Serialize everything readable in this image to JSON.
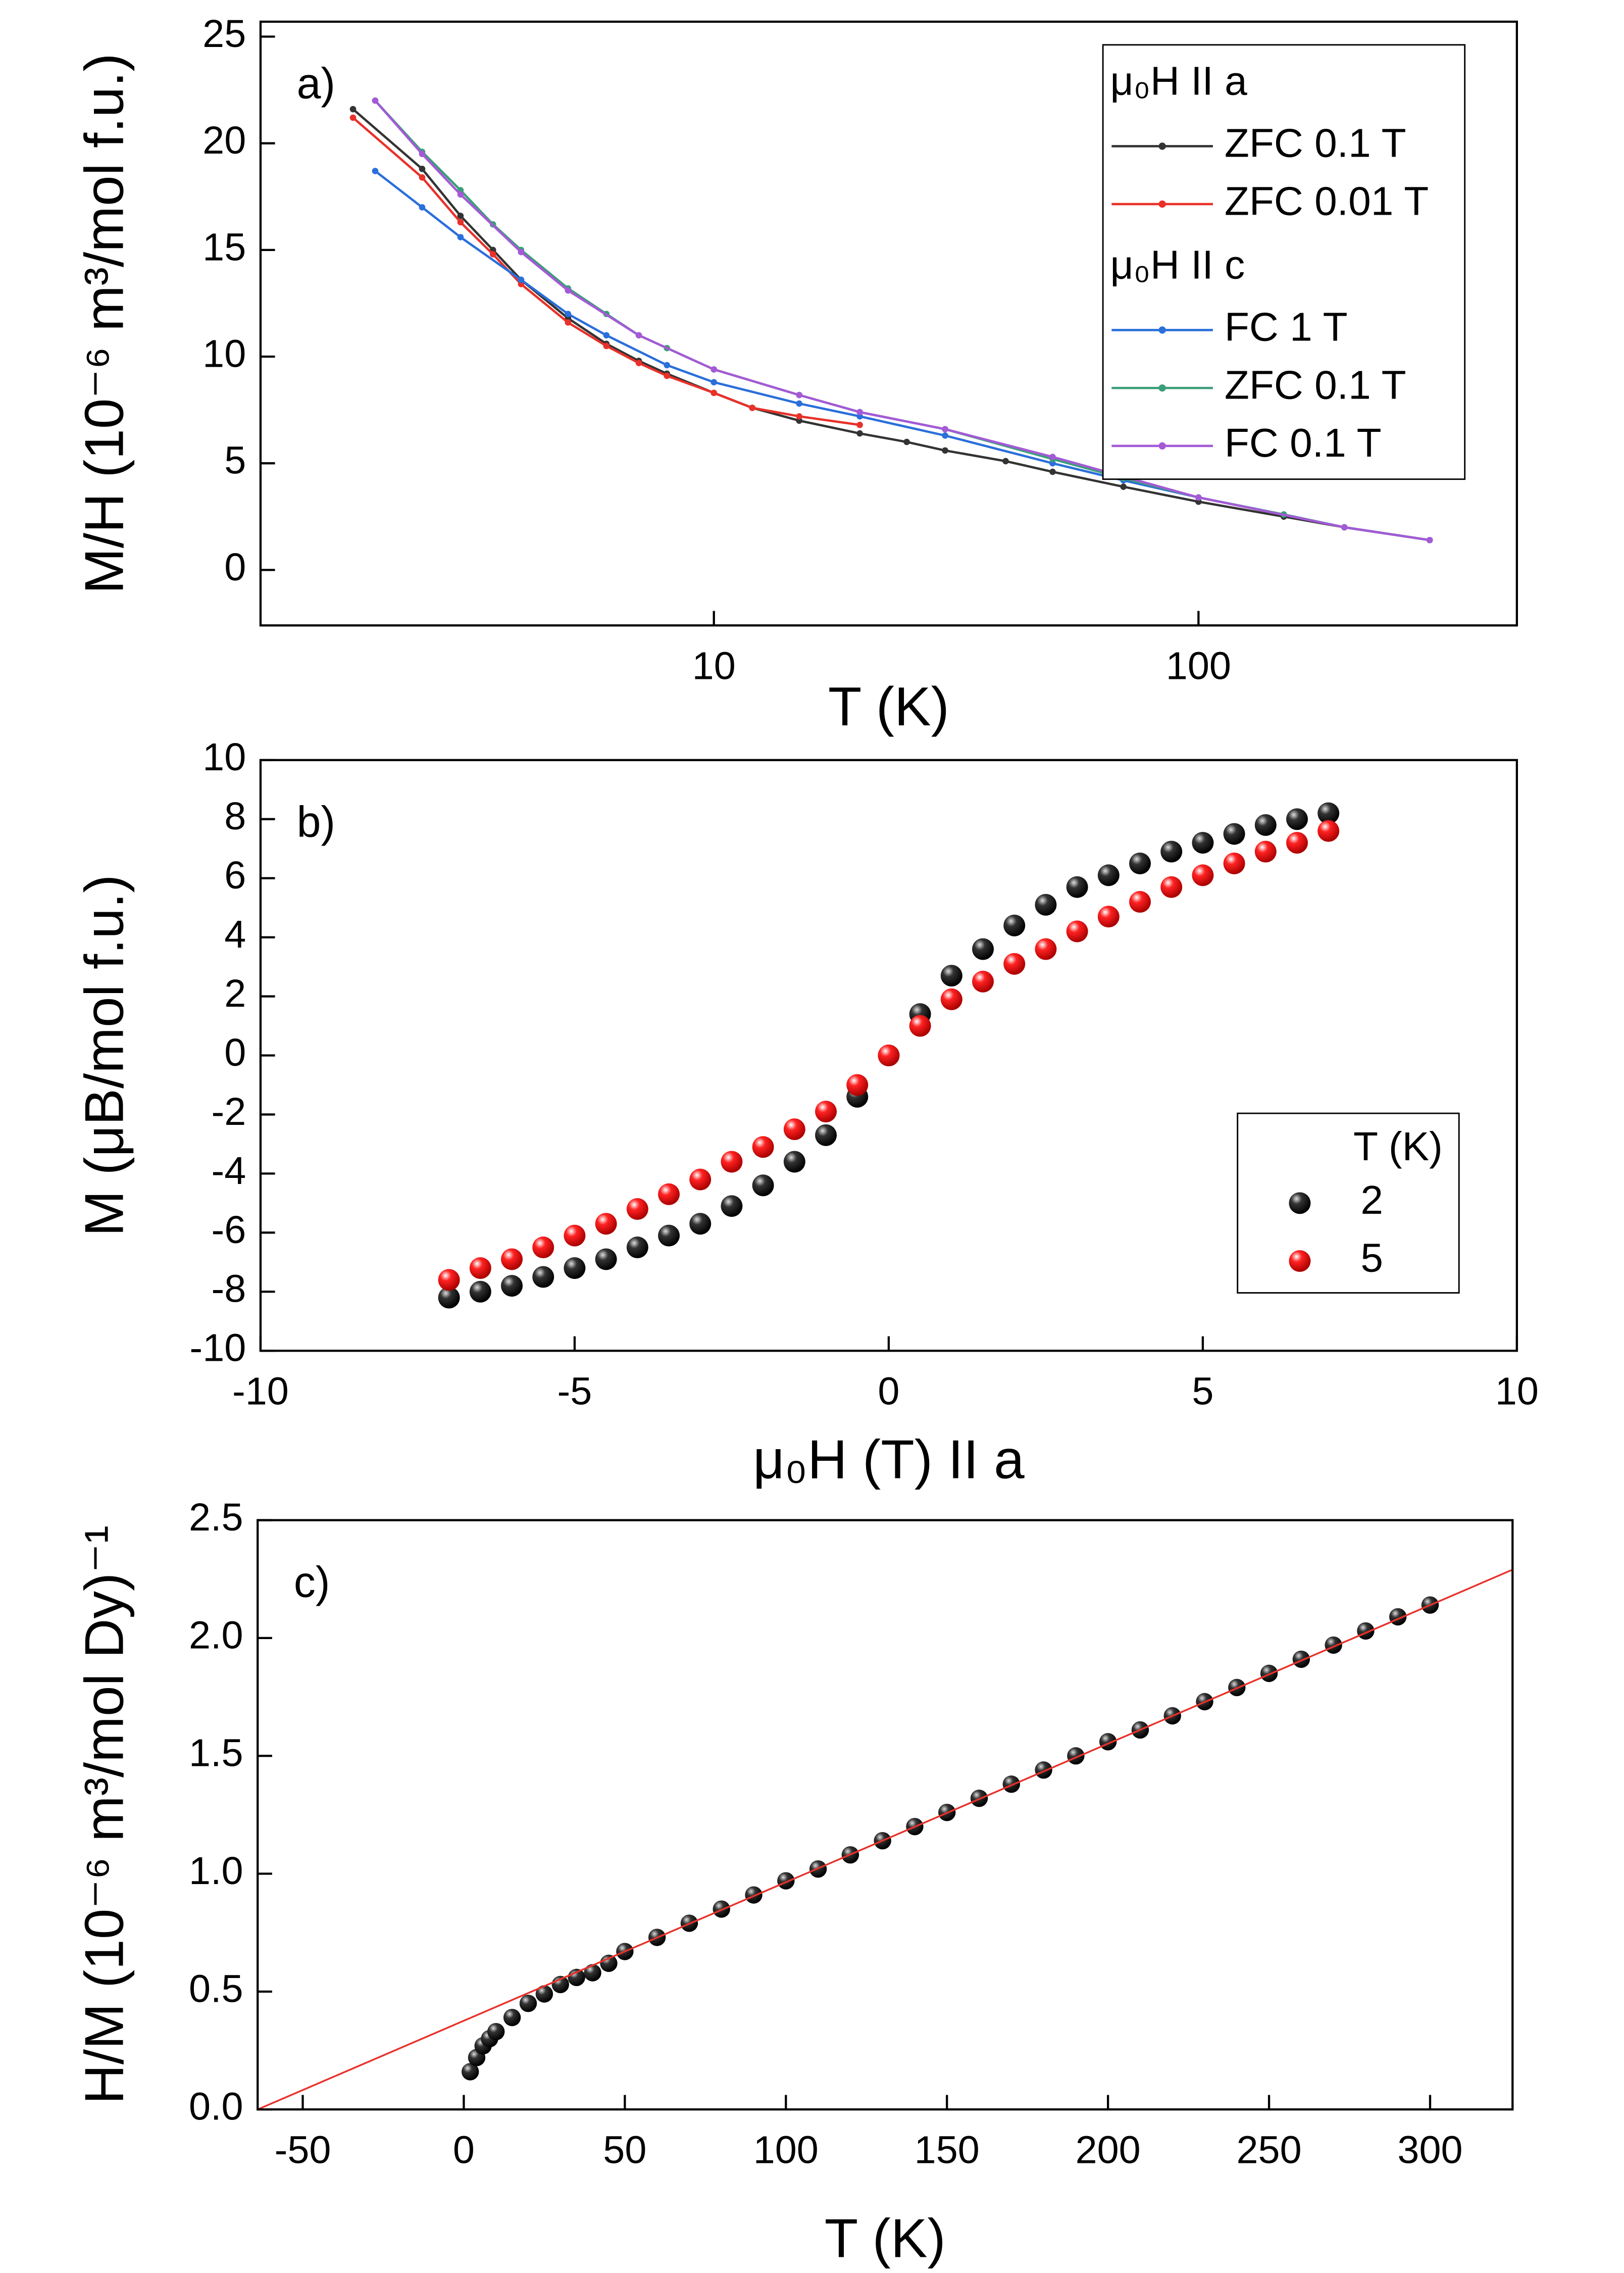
{
  "chart_data": [
    {
      "type": "line",
      "label": "a)",
      "xlabel": "T (K)",
      "ylabel": "M/H (10⁻⁶  m³/mol f.u.)",
      "xlog": true,
      "xlim": [
        1.16,
        454
      ],
      "ylim": [
        -2.6,
        25.7
      ],
      "xticks": [
        10,
        100
      ],
      "yticks": [
        0,
        5,
        10,
        15,
        20,
        25
      ],
      "legend_headers": [
        "μ₀H II a",
        "μ₀H II c"
      ],
      "legend": "upper right",
      "series": [
        {
          "name": "ZFC 0.1 T",
          "color": "#333333",
          "x": [
            1.8,
            2.5,
            3,
            3.5,
            4,
            5,
            6,
            7,
            8,
            10,
            12,
            15,
            20,
            25,
            30,
            40,
            50,
            70,
            100,
            150,
            200,
            300
          ],
          "values": [
            21.6,
            18.8,
            16.6,
            15.0,
            13.6,
            11.8,
            10.6,
            9.8,
            9.2,
            8.3,
            7.6,
            7.0,
            6.4,
            6.0,
            5.6,
            5.1,
            4.6,
            3.9,
            3.2,
            2.5,
            2.0,
            1.4
          ]
        },
        {
          "name": "ZFC 0.01 T",
          "color": "#e8312a",
          "x": [
            1.8,
            2.5,
            3,
            3.5,
            4,
            5,
            6,
            7,
            8,
            10,
            12,
            15,
            20
          ],
          "values": [
            21.2,
            18.4,
            16.3,
            14.8,
            13.4,
            11.6,
            10.5,
            9.7,
            9.1,
            8.3,
            7.6,
            7.2,
            6.8
          ]
        },
        {
          "name": "FC 1 T",
          "color": "#2a6fdb",
          "x": [
            2,
            2.5,
            3,
            4,
            5,
            6,
            8,
            10,
            15,
            20,
            30,
            50,
            70,
            100,
            150,
            200,
            300
          ],
          "values": [
            18.7,
            17.0,
            15.6,
            13.6,
            12.0,
            11.0,
            9.6,
            8.8,
            7.8,
            7.2,
            6.3,
            5.0,
            4.2,
            3.4,
            2.6,
            2.0,
            1.4
          ]
        },
        {
          "name": "ZFC 0.1 T",
          "color": "#3a9e78",
          "x": [
            2,
            2.5,
            3,
            3.5,
            4,
            5,
            6,
            7,
            8,
            10,
            15,
            20,
            30,
            50,
            70,
            100,
            150,
            200,
            300
          ],
          "values": [
            22.0,
            19.6,
            17.8,
            16.2,
            15.0,
            13.2,
            12.0,
            11.0,
            10.4,
            9.4,
            8.2,
            7.4,
            6.6,
            5.2,
            4.3,
            3.4,
            2.6,
            2.0,
            1.4
          ]
        },
        {
          "name": "FC 0.1 T",
          "color": "#a45ad6",
          "x": [
            2,
            2.5,
            3,
            4,
            5,
            7,
            10,
            15,
            20,
            30,
            50,
            100,
            200,
            300
          ],
          "values": [
            22.0,
            19.5,
            17.6,
            14.9,
            13.1,
            11.0,
            9.4,
            8.2,
            7.4,
            6.6,
            5.3,
            3.4,
            2.0,
            1.4
          ]
        }
      ]
    },
    {
      "type": "scatter",
      "label": "b)",
      "xlabel": "μ₀H (T) II a",
      "ylabel": "M (μB/mol f.u.)",
      "xlim": [
        -10,
        10
      ],
      "ylim": [
        -10,
        10
      ],
      "xticks": [
        -10,
        -5,
        0,
        5,
        10
      ],
      "yticks": [
        -10,
        -8,
        -6,
        -4,
        -2,
        0,
        2,
        4,
        6,
        8,
        10
      ],
      "legend_title": "T (K)",
      "legend": "lower right",
      "series": [
        {
          "name": "2",
          "color": "#000000",
          "x": [
            -7,
            -6.5,
            -6,
            -5.5,
            -5,
            -4.5,
            -4,
            -3.5,
            -3,
            -2.5,
            -2,
            -1.5,
            -1,
            -0.5,
            0,
            0.5,
            1,
            1.5,
            2,
            2.5,
            3,
            3.5,
            4,
            4.5,
            5,
            5.5,
            6,
            6.5,
            7
          ],
          "values": [
            -8.2,
            -8.0,
            -7.8,
            -7.5,
            -7.2,
            -6.9,
            -6.5,
            -6.1,
            -5.7,
            -5.1,
            -4.4,
            -3.6,
            -2.7,
            -1.4,
            0,
            1.4,
            2.7,
            3.6,
            4.4,
            5.1,
            5.7,
            6.1,
            6.5,
            6.9,
            7.2,
            7.5,
            7.8,
            8.0,
            8.2
          ]
        },
        {
          "name": "5",
          "color": "#ee1111",
          "x": [
            -7,
            -6.5,
            -6,
            -5.5,
            -5,
            -4.5,
            -4,
            -3.5,
            -3,
            -2.5,
            -2,
            -1.5,
            -1,
            -0.5,
            0,
            0.5,
            1,
            1.5,
            2,
            2.5,
            3,
            3.5,
            4,
            4.5,
            5,
            5.5,
            6,
            6.5,
            7
          ],
          "values": [
            -7.6,
            -7.2,
            -6.9,
            -6.5,
            -6.1,
            -5.7,
            -5.2,
            -4.7,
            -4.2,
            -3.6,
            -3.1,
            -2.5,
            -1.9,
            -1.0,
            0,
            1.0,
            1.9,
            2.5,
            3.1,
            3.6,
            4.2,
            4.7,
            5.2,
            5.7,
            6.1,
            6.5,
            6.9,
            7.2,
            7.6
          ]
        }
      ]
    },
    {
      "type": "scatter",
      "label": "c)",
      "xlabel": "T (K)",
      "ylabel": "H/M (10⁻⁶  m³/mol Dy)⁻¹",
      "xlim": [
        -64,
        325.6
      ],
      "ylim": [
        0,
        2.5
      ],
      "xticks": [
        -50,
        0,
        50,
        100,
        150,
        200,
        250,
        300
      ],
      "yticks": [
        {
          "value": 0,
          "label": "0.0"
        },
        0.5,
        {
          "value": 1,
          "label": "1.0"
        },
        1.5,
        {
          "value": 2,
          "label": "2.0"
        },
        2.5
      ],
      "series": [
        {
          "color": "#000000",
          "x": [
            2,
            4,
            6,
            8,
            10,
            15,
            20,
            25,
            30,
            35,
            40,
            45,
            50,
            60,
            70,
            80,
            90,
            100,
            110,
            120,
            130,
            140,
            150,
            160,
            170,
            180,
            190,
            200,
            210,
            220,
            230,
            240,
            250,
            260,
            270,
            280,
            290,
            300
          ],
          "values": [
            0.16,
            0.22,
            0.27,
            0.3,
            0.33,
            0.39,
            0.45,
            0.49,
            0.53,
            0.56,
            0.58,
            0.62,
            0.67,
            0.73,
            0.79,
            0.85,
            0.91,
            0.97,
            1.02,
            1.08,
            1.14,
            1.2,
            1.26,
            1.32,
            1.38,
            1.44,
            1.5,
            1.56,
            1.61,
            1.67,
            1.73,
            1.79,
            1.85,
            1.91,
            1.97,
            2.03,
            2.09,
            2.14
          ]
        },
        {
          "color": "#e8312a",
          "style": "line",
          "x": [
            -64,
            325.6
          ],
          "values": [
            0,
            2.29
          ]
        }
      ]
    }
  ]
}
